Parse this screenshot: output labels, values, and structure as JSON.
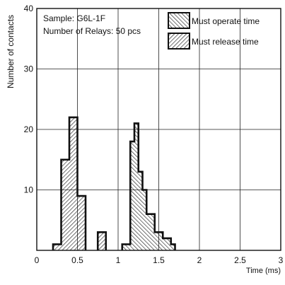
{
  "chart_data": {
    "type": "bar",
    "xlabel": "Time (ms)",
    "ylabel": "Number of contacts",
    "xlim": [
      0,
      3
    ],
    "ylim": [
      0,
      40
    ],
    "xticks": [
      0,
      0.5,
      1,
      1.5,
      2,
      2.5,
      3
    ],
    "yticks": [
      10,
      20,
      30,
      40
    ],
    "xtick_labels": [
      "0",
      "0.5",
      "1",
      "1.5",
      "2",
      "2.5",
      "3"
    ],
    "ytick_labels": [
      "10",
      "20",
      "30",
      "40"
    ],
    "grid": true,
    "legend_position": "top-right",
    "annotations": [
      "Sample: G6L-1F",
      "Number of Relays: 50 pcs"
    ],
    "bin_width": 0.05,
    "series": [
      {
        "name": "Must operate time",
        "hatch": "forward-diagonal",
        "x": [
          1.05,
          1.1,
          1.15,
          1.2,
          1.25,
          1.3,
          1.35,
          1.4,
          1.45,
          1.5,
          1.55,
          1.6,
          1.65
        ],
        "values": [
          1,
          1,
          18,
          21,
          13,
          10,
          6,
          6,
          3,
          3,
          2,
          2,
          1
        ]
      },
      {
        "name": "Must release time",
        "hatch": "backward-diagonal",
        "x": [
          0.2,
          0.25,
          0.3,
          0.35,
          0.4,
          0.45,
          0.5,
          0.55,
          0.7,
          0.75,
          0.8,
          0.85,
          0.9
        ],
        "values": [
          1,
          1,
          15,
          15,
          22,
          22,
          9,
          9,
          0,
          3,
          3,
          0,
          0
        ]
      }
    ]
  }
}
